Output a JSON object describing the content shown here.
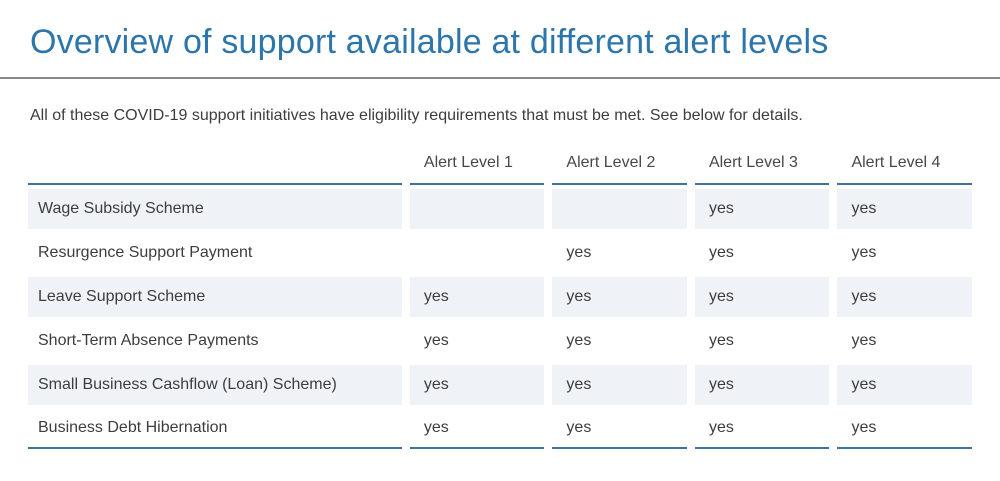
{
  "page": {
    "title": "Overview of support available at different alert levels",
    "intro": "All of these COVID-19 support initiatives have eligibility requirements that must be met. See below for details."
  },
  "table": {
    "column_headers": [
      "",
      "Alert Level 1",
      "Alert Level 2",
      "Alert Level 3",
      "Alert Level 4"
    ],
    "rows": [
      {
        "label": "Wage Subsidy Scheme",
        "values": [
          "",
          "",
          "yes",
          "yes"
        ]
      },
      {
        "label": "Resurgence Support Payment",
        "values": [
          "",
          "yes",
          "yes",
          "yes"
        ]
      },
      {
        "label": "Leave Support Scheme",
        "values": [
          "yes",
          "yes",
          "yes",
          "yes"
        ]
      },
      {
        "label": "Short-Term Absence Payments",
        "values": [
          "yes",
          "yes",
          "yes",
          "yes"
        ]
      },
      {
        "label": "Small Business Cashflow (Loan) Scheme)",
        "values": [
          "yes",
          "yes",
          "yes",
          "yes"
        ]
      },
      {
        "label": "Business Debt Hibernation",
        "values": [
          "yes",
          "yes",
          "yes",
          "yes"
        ]
      }
    ]
  },
  "colors": {
    "title": "#2d76ab",
    "rule": "#888888",
    "table_border": "#40739c",
    "stripe_bg": "#eff3f7",
    "text": "#3d3d3d"
  }
}
